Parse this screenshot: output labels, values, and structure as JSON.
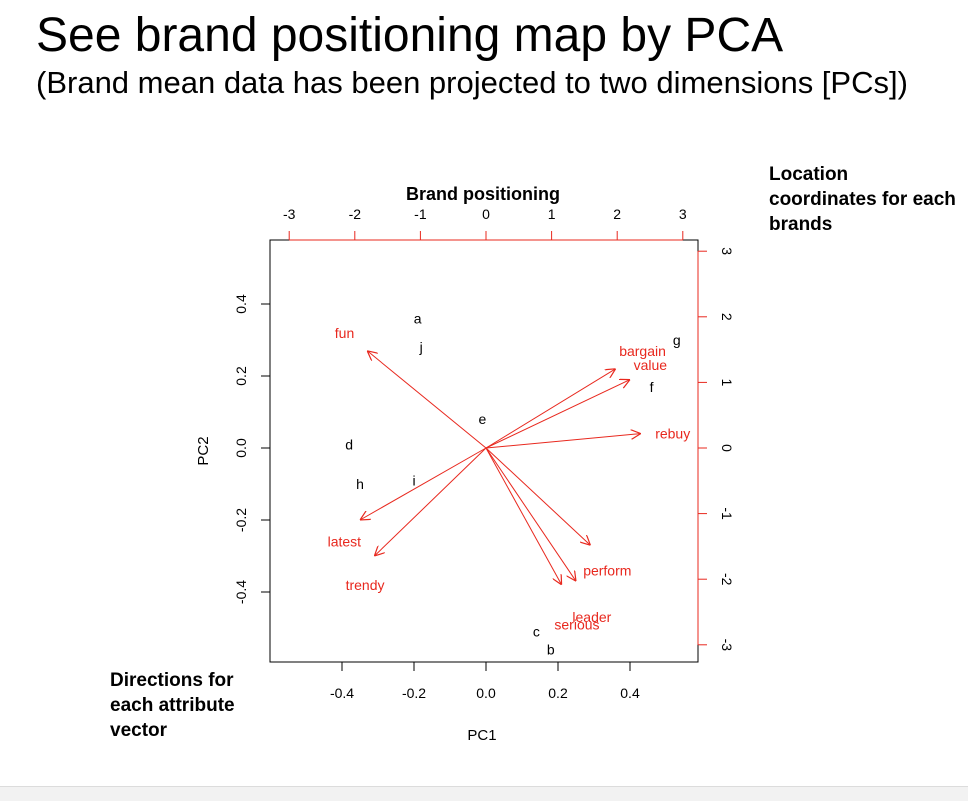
{
  "slide": {
    "title": "See brand positioning map by PCA",
    "subtitle": "(Brand mean data has been projected to two dimensions [PCs])",
    "note_right": "Location coordinates for each brands",
    "note_left": "Directions for each attribute vector"
  },
  "colors": {
    "vector": "#e8281e",
    "brand_label": "#000000",
    "axis": "#000000",
    "secondary_tick": "#e8281e"
  },
  "chart_data": {
    "type": "scatter",
    "subtype": "biplot",
    "title": "Brand positioning",
    "xlabel": "PC1",
    "ylabel": "PC2",
    "xlim": [
      -0.6,
      0.58
    ],
    "ylim": [
      -0.6,
      0.58
    ],
    "x_ticks": [
      "-0.4",
      "-0.2",
      "0.0",
      "0.2",
      "0.4"
    ],
    "y_ticks": [
      "-0.4",
      "-0.2",
      "0.0",
      "0.2",
      "0.4"
    ],
    "top_ticks": [
      "-3",
      "-2",
      "-1",
      "0",
      "1",
      "2",
      "3"
    ],
    "right_ticks": [
      "-3",
      "-2",
      "-1",
      "0",
      "1",
      "2",
      "3"
    ],
    "grid": false,
    "legend": null,
    "brands": [
      {
        "label": "a",
        "x": -0.19,
        "y": 0.36
      },
      {
        "label": "j",
        "x": -0.18,
        "y": 0.28
      },
      {
        "label": "e",
        "x": -0.01,
        "y": 0.08
      },
      {
        "label": "d",
        "x": -0.38,
        "y": 0.01
      },
      {
        "label": "h",
        "x": -0.35,
        "y": -0.1
      },
      {
        "label": "i",
        "x": -0.2,
        "y": -0.09
      },
      {
        "label": "g",
        "x": 0.53,
        "y": 0.3
      },
      {
        "label": "f",
        "x": 0.46,
        "y": 0.17
      },
      {
        "label": "c",
        "x": 0.14,
        "y": -0.51
      },
      {
        "label": "b",
        "x": 0.18,
        "y": -0.56
      }
    ],
    "vectors": [
      {
        "label": "fun",
        "x": -0.33,
        "y": 0.27,
        "label_x": -0.42,
        "label_y": 0.32
      },
      {
        "label": "bargain",
        "x": 0.36,
        "y": 0.22,
        "label_x": 0.37,
        "label_y": 0.27
      },
      {
        "label": "value",
        "x": 0.4,
        "y": 0.19,
        "label_x": 0.41,
        "label_y": 0.23
      },
      {
        "label": "rebuy",
        "x": 0.43,
        "y": 0.04,
        "label_x": 0.47,
        "label_y": 0.04
      },
      {
        "label": "perform",
        "x": 0.29,
        "y": -0.27,
        "label_x": 0.27,
        "label_y": -0.34
      },
      {
        "label": "leader",
        "x": 0.25,
        "y": -0.37,
        "label_x": 0.24,
        "label_y": -0.47
      },
      {
        "label": "serious",
        "x": 0.21,
        "y": -0.38,
        "label_x": 0.19,
        "label_y": -0.49
      },
      {
        "label": "latest",
        "x": -0.35,
        "y": -0.2,
        "label_x": -0.44,
        "label_y": -0.26
      },
      {
        "label": "trendy",
        "x": -0.31,
        "y": -0.3,
        "label_x": -0.39,
        "label_y": -0.38
      }
    ]
  }
}
